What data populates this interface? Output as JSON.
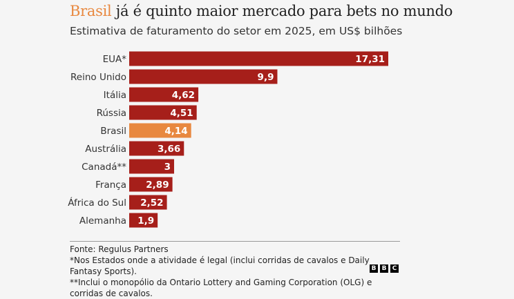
{
  "header": {
    "title_highlight": "Brasil",
    "title_rest": " já é quinto maior mercado para bets no mundo",
    "subtitle": "Estimativa de faturamento do setor em 2025, em US$ bilhões"
  },
  "chart_data": {
    "type": "bar",
    "orientation": "horizontal",
    "categories": [
      "EUA*",
      "Reino Unido",
      "Itália",
      "Rússia",
      "Brasil",
      "Austrália",
      "Canadá**",
      "França",
      "África do Sul",
      "Alemanha"
    ],
    "values": [
      17.31,
      9.9,
      4.62,
      4.51,
      4.14,
      3.66,
      3,
      2.89,
      2.52,
      1.9
    ],
    "value_labels": [
      "17,31",
      "9,9",
      "4,62",
      "4,51",
      "4,14",
      "3,66",
      "3",
      "2,89",
      "2,52",
      "1,9"
    ],
    "highlight": "Brasil",
    "colors": {
      "default": "#a61f1a",
      "highlight": "#e8883f"
    },
    "grid": false
  },
  "footer": {
    "source": "Fonte: Regulus Partners",
    "note1": "*Nos Estados onde a atividade é legal (inclui corridas de cavalos e Daily Fantasy Sports).",
    "note2": "**Inclui o monopólio da Ontario Lottery and Gaming Corporation (OLG) e corridas de cavalos.",
    "logo": "BBC"
  }
}
